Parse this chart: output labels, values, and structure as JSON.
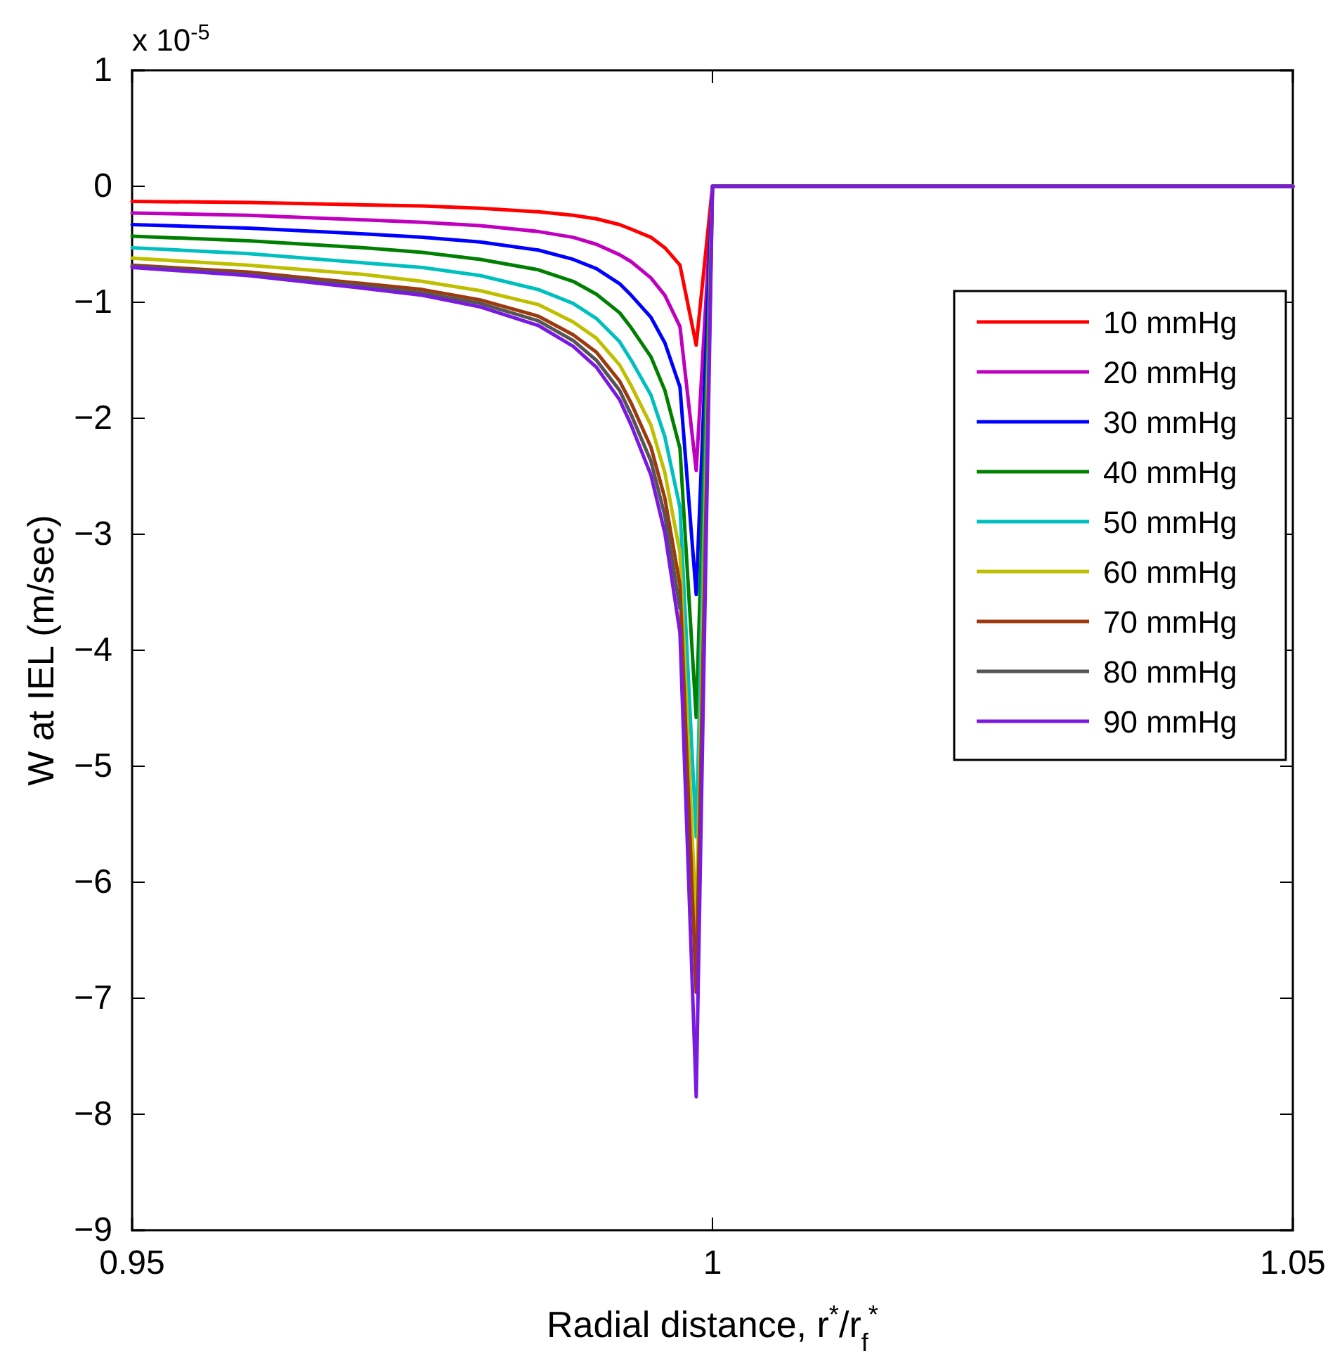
{
  "chart_data": {
    "type": "line",
    "xlabel": "Radial distance, r$^{*}$/r$_{f}$$^{*}$",
    "ylabel": "W at IEL (m/sec)",
    "annotations": [
      "x 10$^{-5}$"
    ],
    "x": [
      0.95,
      0.96,
      0.97,
      0.975,
      0.98,
      0.985,
      0.988,
      0.99,
      0.992,
      0.993,
      0.9947,
      0.9959,
      0.9972,
      0.9986,
      1.0,
      1.05
    ],
    "xlim": [
      0.95,
      1.05
    ],
    "xticks": [
      0.95,
      1,
      1.05
    ],
    "ylim": [
      -9,
      1
    ],
    "yticks": [
      -9,
      -8,
      -7,
      -6,
      -5,
      -4,
      -3,
      -2,
      -1,
      0,
      1
    ],
    "grid": false,
    "legend": "right",
    "line_style": "solid",
    "marker": "none",
    "series": [
      {
        "name": "10 mmHg",
        "color": "#ff0000",
        "values": [
          -0.13,
          -0.14,
          -0.16,
          -0.17,
          -0.19,
          -0.22,
          -0.25,
          -0.28,
          -0.33,
          -0.37,
          -0.44,
          -0.53,
          -0.68,
          -1.37,
          0,
          0
        ]
      },
      {
        "name": "20 mmHg",
        "color": "#bf00bf",
        "values": [
          -0.23,
          -0.25,
          -0.29,
          -0.31,
          -0.34,
          -0.39,
          -0.44,
          -0.5,
          -0.59,
          -0.65,
          -0.79,
          -0.94,
          -1.21,
          -2.45,
          0,
          0
        ]
      },
      {
        "name": "30 mmHg",
        "color": "#0000ff",
        "values": [
          -0.33,
          -0.36,
          -0.41,
          -0.44,
          -0.48,
          -0.55,
          -0.63,
          -0.71,
          -0.84,
          -0.94,
          -1.13,
          -1.35,
          -1.73,
          -3.52,
          0,
          0
        ]
      },
      {
        "name": "40 mmHg",
        "color": "#008000",
        "values": [
          -0.43,
          -0.47,
          -0.53,
          -0.57,
          -0.63,
          -0.72,
          -0.82,
          -0.93,
          -1.09,
          -1.22,
          -1.47,
          -1.76,
          -2.26,
          -4.58,
          0,
          0
        ]
      },
      {
        "name": "50 mmHg",
        "color": "#00bfbf",
        "values": [
          -0.53,
          -0.58,
          -0.66,
          -0.7,
          -0.77,
          -0.89,
          -1.01,
          -1.14,
          -1.34,
          -1.5,
          -1.8,
          -2.16,
          -2.77,
          -5.61,
          0,
          0
        ]
      },
      {
        "name": "60 mmHg",
        "color": "#bfbf00",
        "values": [
          -0.62,
          -0.68,
          -0.76,
          -0.82,
          -0.9,
          -1.02,
          -1.17,
          -1.31,
          -1.54,
          -1.72,
          -2.06,
          -2.47,
          -3.16,
          -6.4,
          0,
          0
        ]
      },
      {
        "name": "70 mmHg",
        "color": "#9c3a0e",
        "values": [
          -0.68,
          -0.74,
          -0.84,
          -0.89,
          -0.98,
          -1.12,
          -1.28,
          -1.43,
          -1.68,
          -1.87,
          -2.25,
          -2.69,
          -3.44,
          -6.95,
          0,
          0
        ]
      },
      {
        "name": "80 mmHg",
        "color": "#555555",
        "values": [
          -0.69,
          -0.76,
          -0.86,
          -0.92,
          -1.01,
          -1.16,
          -1.33,
          -1.5,
          -1.76,
          -1.97,
          -2.37,
          -2.84,
          -3.64,
          null,
          0,
          0
        ]
      },
      {
        "name": "90 mmHg",
        "color": "#7a1ae0",
        "values": [
          -0.7,
          -0.77,
          -0.88,
          -0.94,
          -1.04,
          -1.2,
          -1.38,
          -1.56,
          -1.84,
          -2.06,
          -2.49,
          -2.99,
          -3.85,
          -7.85,
          0,
          0
        ]
      }
    ]
  }
}
